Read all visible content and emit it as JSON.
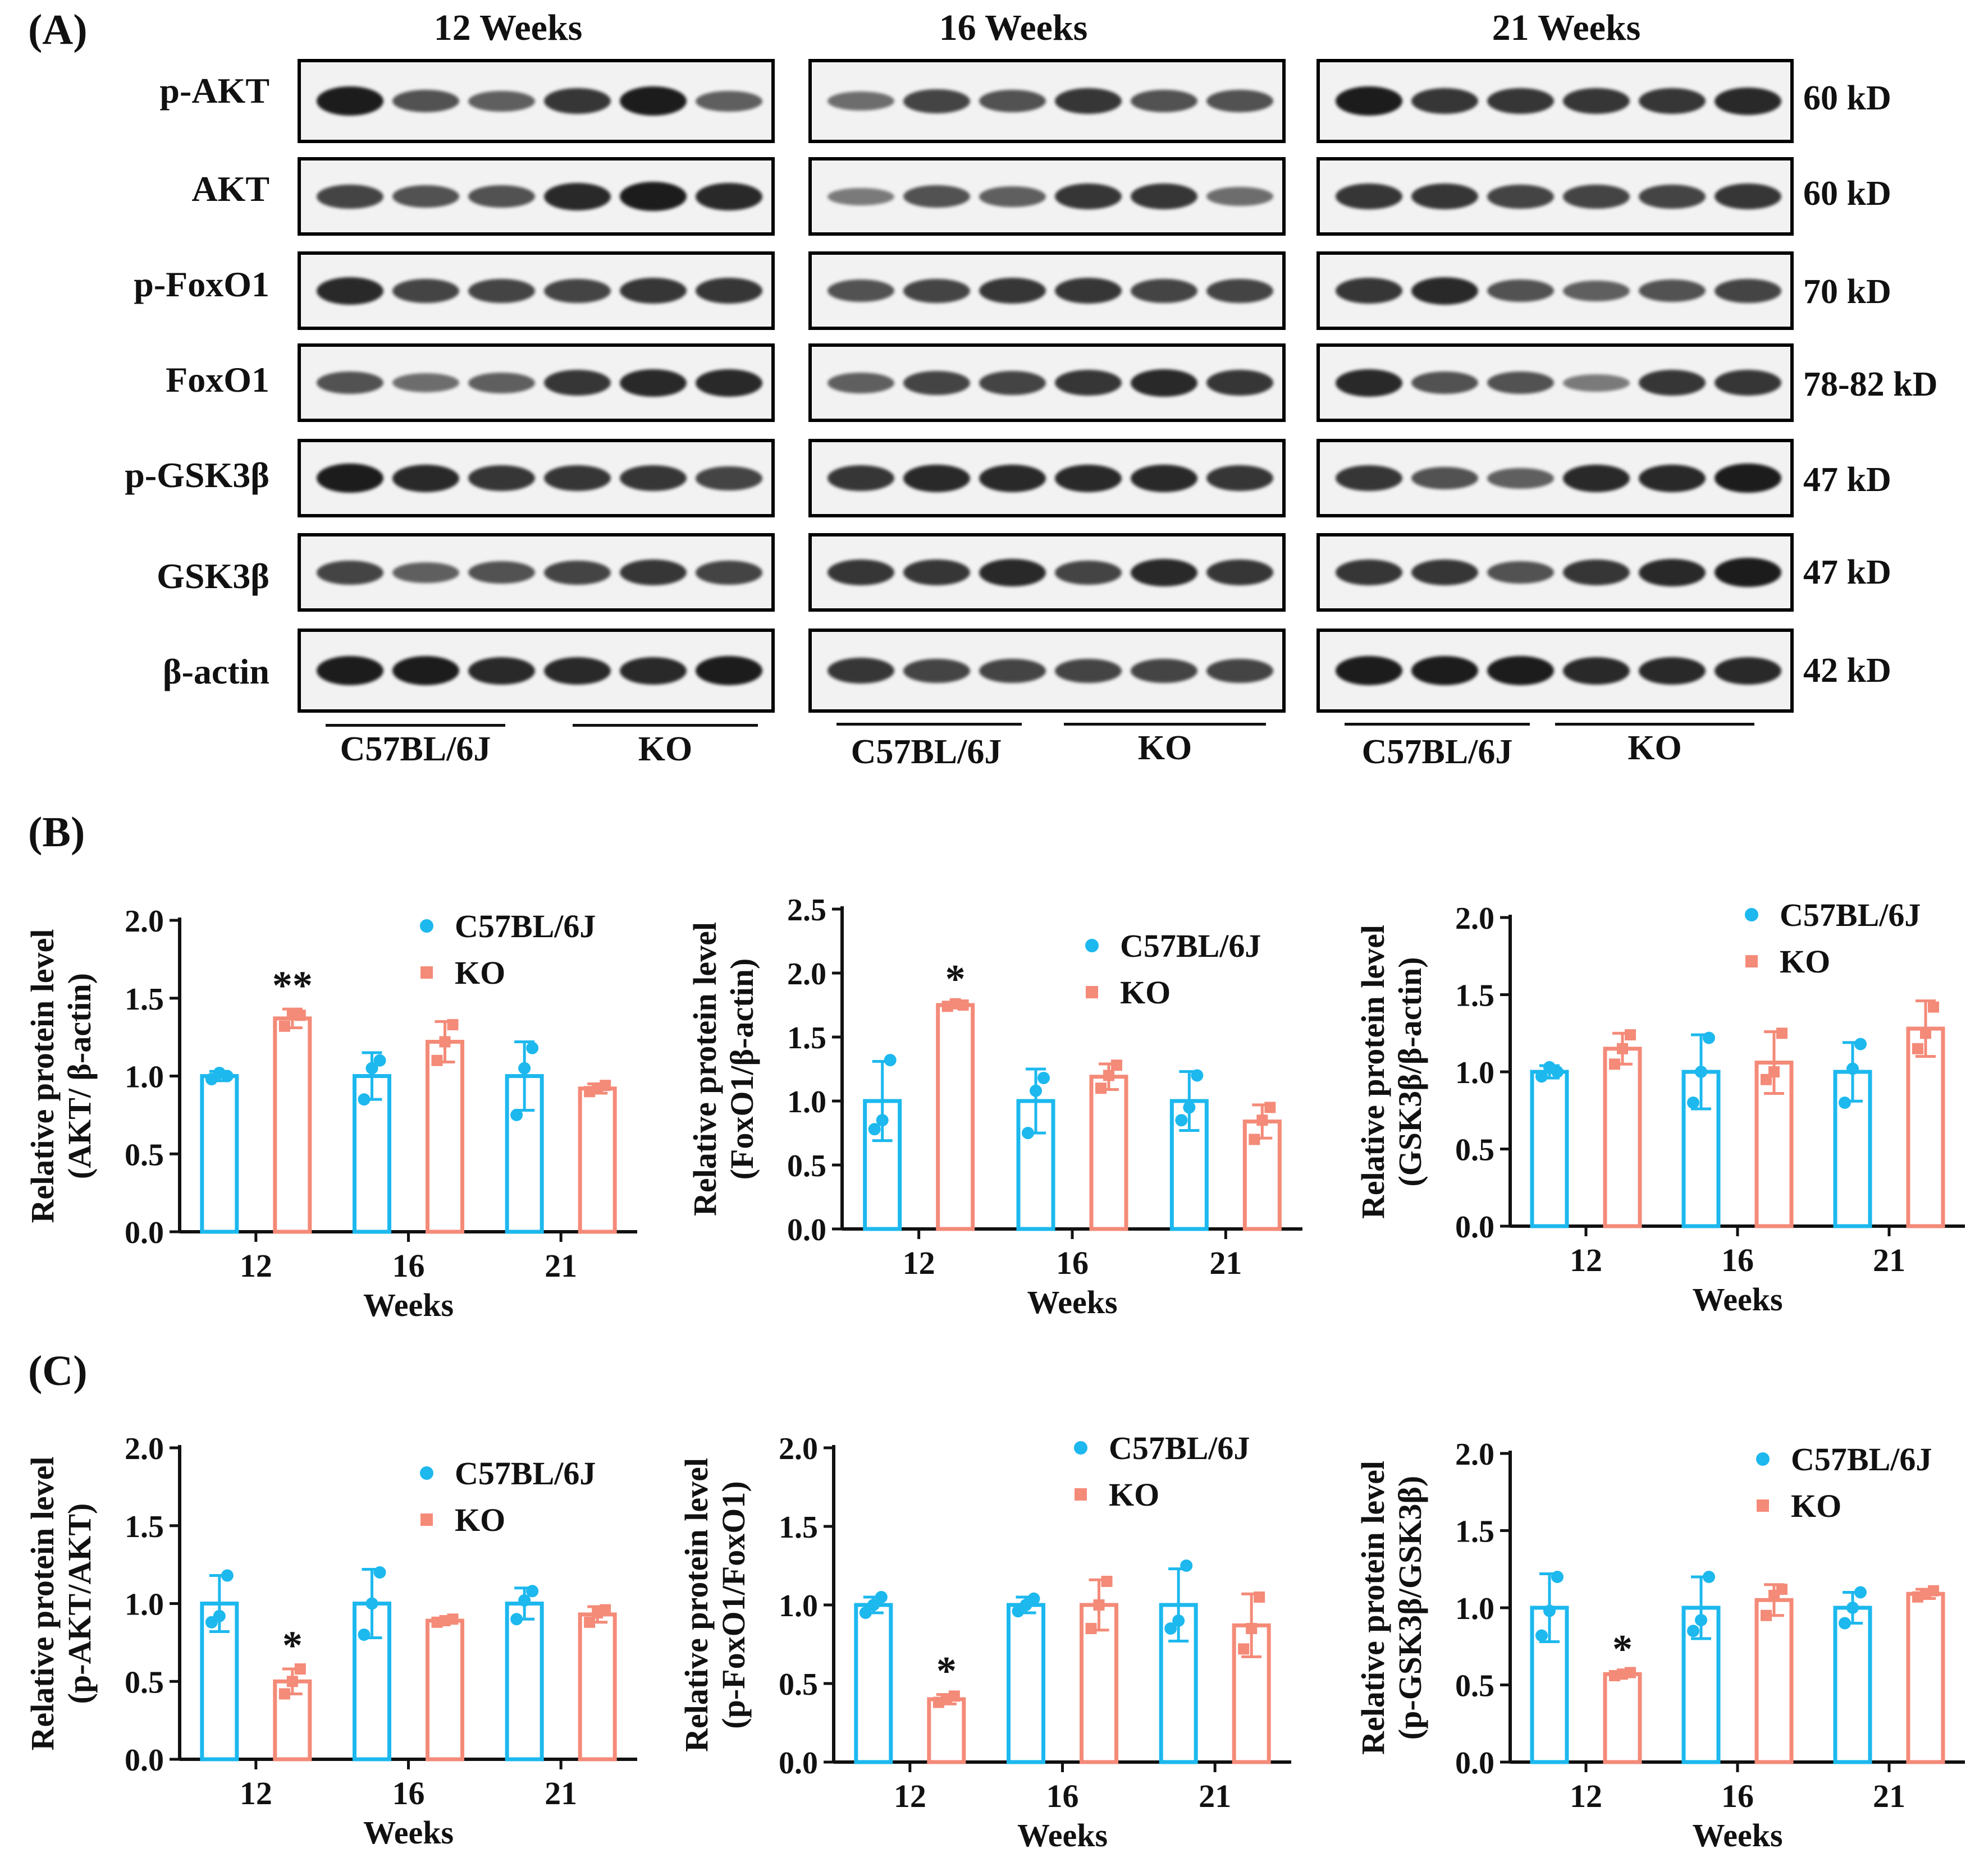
{
  "panels": {
    "a": "(A)",
    "b": "(B)",
    "c": "(C)"
  },
  "colors": {
    "wt": "#1cb8ee",
    "ko": "#f48a78"
  },
  "blots": {
    "week_titles": [
      "12  Weeks",
      "16  Weeks",
      "21 Weeks"
    ],
    "rows": [
      {
        "label": "p-AKT",
        "kd": "60 kD"
      },
      {
        "label": "AKT",
        "kd": "60 kD"
      },
      {
        "label": "p-FoxO1",
        "kd": "70 kD"
      },
      {
        "label": "FoxO1",
        "kd": "78-82 kD"
      },
      {
        "label": "p-GSK3β",
        "kd": "47 kD"
      },
      {
        "label": "GSK3β",
        "kd": "47 kD"
      },
      {
        "label": "β-actin",
        "kd": "42 kD"
      }
    ],
    "group_labels": {
      "wt": "C57BL/6J",
      "ko": "KO"
    }
  },
  "chart_data": [
    {
      "type": "bar",
      "panel": "B",
      "ylabel_line1": "Relative protein level",
      "ylabel_line2": "(AKT/ β-actin)",
      "xlabel": "Weeks",
      "categories": [
        "12",
        "16",
        "21"
      ],
      "ylim": [
        0,
        2.0
      ],
      "yticks": [
        "0.0",
        "0.5",
        "1.0",
        "1.5",
        "2.0"
      ],
      "ytick_values": [
        0,
        0.5,
        1.0,
        1.5,
        2.0
      ],
      "legend": [
        "C57BL/6J",
        "KO"
      ],
      "series": [
        {
          "name": "C57BL/6J",
          "values": [
            1.0,
            1.0,
            1.0
          ],
          "errors": [
            0.03,
            0.15,
            0.22
          ],
          "points": [
            [
              0.98,
              1.02,
              1.0
            ],
            [
              0.85,
              1.05,
              1.1
            ],
            [
              0.75,
              1.05,
              1.18
            ]
          ]
        },
        {
          "name": "KO",
          "values": [
            1.37,
            1.22,
            0.92
          ],
          "errors": [
            0.06,
            0.13,
            0.03
          ],
          "points": [
            [
              1.32,
              1.4,
              1.39
            ],
            [
              1.1,
              1.22,
              1.33
            ],
            [
              0.9,
              0.92,
              0.94
            ]
          ]
        }
      ],
      "annotations": [
        {
          "category": "12",
          "series": "KO",
          "text": "**"
        }
      ]
    },
    {
      "type": "bar",
      "panel": "B",
      "ylabel_line1": "Relative protein level",
      "ylabel_line2": "(FoxO1/β-actin)",
      "xlabel": "Weeks",
      "categories": [
        "12",
        "16",
        "21"
      ],
      "ylim": [
        0,
        2.5
      ],
      "yticks": [
        "0.0",
        "0.5",
        "1.0",
        "1.5",
        "2.0",
        "2.5"
      ],
      "ytick_values": [
        0,
        0.5,
        1.0,
        1.5,
        2.0,
        2.5
      ],
      "legend": [
        "C57BL/6J",
        "KO"
      ],
      "series": [
        {
          "name": "C57BL/6J",
          "values": [
            1.0,
            1.0,
            1.0
          ],
          "errors": [
            0.31,
            0.25,
            0.23
          ],
          "points": [
            [
              0.78,
              0.85,
              1.32
            ],
            [
              0.75,
              1.08,
              1.18
            ],
            [
              0.85,
              0.95,
              1.2
            ]
          ]
        },
        {
          "name": "KO",
          "values": [
            1.75,
            1.19,
            0.84
          ],
          "errors": [
            0.02,
            0.1,
            0.13
          ],
          "points": [
            [
              1.74,
              1.76,
              1.75
            ],
            [
              1.1,
              1.2,
              1.28
            ],
            [
              0.7,
              0.85,
              0.95
            ]
          ]
        }
      ],
      "annotations": [
        {
          "category": "12",
          "series": "KO",
          "text": "*"
        }
      ]
    },
    {
      "type": "bar",
      "panel": "B",
      "ylabel_line1": "Relative protein level",
      "ylabel_line2": "(GSK3β/β-actin)",
      "xlabel": "Weeks",
      "categories": [
        "12",
        "16",
        "21"
      ],
      "ylim": [
        0,
        2.0
      ],
      "yticks": [
        "0.0",
        "0.5",
        "1.0",
        "1.5",
        "2.0"
      ],
      "ytick_values": [
        0,
        0.5,
        1.0,
        1.5,
        2.0
      ],
      "legend": [
        "C57BL/6J",
        "KO"
      ],
      "series": [
        {
          "name": "C57BL/6J",
          "values": [
            1.0,
            1.0,
            1.0
          ],
          "errors": [
            0.04,
            0.24,
            0.19
          ],
          "points": [
            [
              0.97,
              1.03,
              1.0
            ],
            [
              0.8,
              1.0,
              1.22
            ],
            [
              0.8,
              1.02,
              1.18
            ]
          ]
        },
        {
          "name": "KO",
          "values": [
            1.15,
            1.06,
            1.28
          ],
          "errors": [
            0.1,
            0.2,
            0.18
          ],
          "points": [
            [
              1.05,
              1.15,
              1.24
            ],
            [
              0.95,
              1.0,
              1.25
            ],
            [
              1.15,
              1.25,
              1.42
            ]
          ]
        }
      ],
      "annotations": []
    },
    {
      "type": "bar",
      "panel": "C",
      "ylabel_line1": "Relative protein level",
      "ylabel_line2": "(p-AKT/AKT)",
      "xlabel": "Weeks",
      "categories": [
        "12",
        "16",
        "21"
      ],
      "ylim": [
        0,
        2.0
      ],
      "yticks": [
        "0.0",
        "0.5",
        "1.0",
        "1.5",
        "2.0"
      ],
      "ytick_values": [
        0,
        0.5,
        1.0,
        1.5,
        2.0
      ],
      "legend": [
        "C57BL/6J",
        "KO"
      ],
      "series": [
        {
          "name": "C57BL/6J",
          "values": [
            1.0,
            1.0,
            1.0
          ],
          "errors": [
            0.18,
            0.22,
            0.1
          ],
          "points": [
            [
              0.88,
              0.92,
              1.18
            ],
            [
              0.8,
              1.0,
              1.2
            ],
            [
              0.9,
              1.02,
              1.08
            ]
          ]
        },
        {
          "name": "KO",
          "values": [
            0.5,
            0.89,
            0.93
          ],
          "errors": [
            0.08,
            0.01,
            0.05
          ],
          "points": [
            [
              0.42,
              0.5,
              0.58
            ],
            [
              0.88,
              0.89,
              0.9
            ],
            [
              0.88,
              0.94,
              0.96
            ]
          ]
        }
      ],
      "annotations": [
        {
          "category": "12",
          "series": "KO",
          "text": "*"
        }
      ]
    },
    {
      "type": "bar",
      "panel": "C",
      "ylabel_line1": "Relative protein level",
      "ylabel_line2": "(p-FoxO1/FoxO1)",
      "xlabel": "Weeks",
      "categories": [
        "12",
        "16",
        "21"
      ],
      "ylim": [
        0,
        2.0
      ],
      "yticks": [
        "0.0",
        "0.5",
        "1.0",
        "1.5",
        "2.0"
      ],
      "ytick_values": [
        0,
        0.5,
        1.0,
        1.5,
        2.0
      ],
      "legend": [
        "C57BL/6J",
        "KO"
      ],
      "series": [
        {
          "name": "C57BL/6J",
          "values": [
            1.0,
            1.0,
            1.0
          ],
          "errors": [
            0.05,
            0.05,
            0.23
          ],
          "points": [
            [
              0.95,
              1.0,
              1.05
            ],
            [
              0.96,
              1.0,
              1.04
            ],
            [
              0.85,
              0.9,
              1.25
            ]
          ]
        },
        {
          "name": "KO",
          "values": [
            0.4,
            1.0,
            0.87
          ],
          "errors": [
            0.03,
            0.16,
            0.2
          ],
          "points": [
            [
              0.38,
              0.4,
              0.42
            ],
            [
              0.85,
              1.0,
              1.15
            ],
            [
              0.72,
              0.85,
              1.05
            ]
          ]
        }
      ],
      "annotations": [
        {
          "category": "12",
          "series": "KO",
          "text": "*"
        }
      ]
    },
    {
      "type": "bar",
      "panel": "C",
      "ylabel_line1": "Relative protein level",
      "ylabel_line2": "(p-GSK3β/GSK3β)",
      "xlabel": "Weeks",
      "categories": [
        "12",
        "16",
        "21"
      ],
      "ylim": [
        0,
        2.0
      ],
      "yticks": [
        "0.0",
        "0.5",
        "1.0",
        "1.5",
        "2.0"
      ],
      "ytick_values": [
        0,
        0.5,
        1.0,
        1.5,
        2.0
      ],
      "legend": [
        "C57BL/6J",
        "KO"
      ],
      "series": [
        {
          "name": "C57BL/6J",
          "values": [
            1.0,
            1.0,
            1.0
          ],
          "errors": [
            0.22,
            0.2,
            0.1
          ],
          "points": [
            [
              0.82,
              0.98,
              1.2
            ],
            [
              0.85,
              0.92,
              1.2
            ],
            [
              0.9,
              1.0,
              1.1
            ]
          ]
        },
        {
          "name": "KO",
          "values": [
            0.57,
            1.05,
            1.09
          ],
          "errors": [
            0.01,
            0.1,
            0.03
          ],
          "points": [
            [
              0.56,
              0.57,
              0.58
            ],
            [
              0.95,
              1.08,
              1.12
            ],
            [
              1.07,
              1.09,
              1.11
            ]
          ]
        }
      ],
      "annotations": [
        {
          "category": "12",
          "series": "KO",
          "text": "*"
        }
      ]
    }
  ]
}
